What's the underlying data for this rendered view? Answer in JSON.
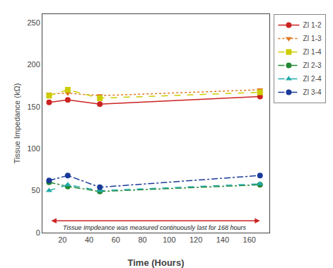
{
  "chart_data": {
    "type": "line",
    "xlabel": "Time (Hours)",
    "ylabel": "Tissue Impedance (kΩ)",
    "x": [
      10,
      24,
      48,
      168
    ],
    "xlim": [
      5,
      175
    ],
    "ylim": [
      0,
      260
    ],
    "xticks": [
      20,
      40,
      60,
      80,
      100,
      120,
      140,
      160
    ],
    "yticks": [
      0,
      50,
      100,
      150,
      200,
      250
    ],
    "grid": false,
    "legend": "right",
    "series": [
      {
        "name": "ZI 1-2",
        "color": "#cc2222",
        "marker": "circle",
        "line_style": "solid",
        "values": [
          155,
          158,
          153,
          162
        ]
      },
      {
        "name": "ZI 1-3",
        "color": "#e07820",
        "marker": "triangle-down",
        "line_style": "dot",
        "values": [
          165,
          166,
          163,
          170
        ]
      },
      {
        "name": "ZI 1-4",
        "color": "#cccc00",
        "marker": "square",
        "line_style": "dash",
        "values": [
          163,
          170,
          160,
          167
        ]
      },
      {
        "name": "ZI 2-3",
        "color": "#228833",
        "marker": "circle",
        "line_style": "dashdot",
        "values": [
          60,
          55,
          49,
          57
        ]
      },
      {
        "name": "ZI 2-4",
        "color": "#22aaaa",
        "marker": "triangle-up",
        "line_style": "dash",
        "values": [
          50,
          57,
          50,
          58
        ]
      },
      {
        "name": "ZI 3-4",
        "color": "#1a3a99",
        "marker": "circle",
        "line_style": "dashdot",
        "values": [
          62,
          68,
          54,
          68
        ]
      }
    ],
    "annotations": [
      {
        "text": "Tissue Impdeance was measured continuously last for 168 hours",
        "x": [
          10,
          168
        ],
        "y": 14,
        "color": "#cc2222"
      }
    ]
  }
}
